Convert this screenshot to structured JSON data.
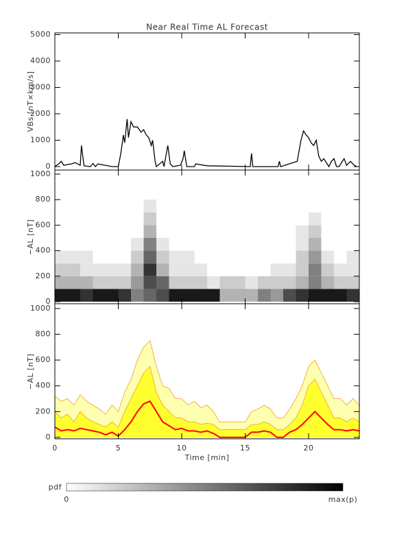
{
  "chart_data": [
    {
      "type": "line",
      "title": "Near Real Time AL Forecast",
      "ylabel": "VBs [nT×km/s]",
      "xlim": [
        0,
        24
      ],
      "ylim": [
        -130,
        5065
      ],
      "yticks": [
        0,
        1000,
        2000,
        3000,
        4000,
        5000
      ],
      "x": [
        0,
        0.3,
        0.5,
        0.7,
        1.0,
        1.3,
        1.6,
        2.0,
        2.1,
        2.3,
        2.8,
        3.0,
        3.2,
        3.4,
        4.5,
        5.0,
        5.2,
        5.4,
        5.5,
        5.7,
        5.8,
        6.0,
        6.2,
        6.5,
        6.8,
        7.0,
        7.2,
        7.4,
        7.6,
        7.7,
        7.9,
        8.0,
        8.5,
        8.6,
        8.9,
        9.1,
        9.3,
        9.9,
        10.1,
        10.2,
        10.4,
        11.0,
        11.1,
        12.0,
        15.4,
        15.5,
        15.6,
        17.6,
        17.7,
        17.8,
        19.1,
        19.4,
        19.6,
        19.8,
        20.0,
        20.2,
        20.4,
        20.6,
        20.8,
        21.0,
        21.2,
        21.6,
        21.8,
        22.0,
        22.2,
        22.4,
        22.8,
        23.0,
        23.3,
        23.6,
        23.8
      ],
      "series": [
        {
          "color": "#000000",
          "values": [
            0,
            100,
            200,
            50,
            80,
            100,
            150,
            50,
            800,
            30,
            0,
            120,
            0,
            100,
            0,
            0,
            500,
            1200,
            900,
            1800,
            1100,
            1700,
            1500,
            1500,
            1300,
            1400,
            1200,
            1100,
            800,
            1000,
            200,
            0,
            200,
            0,
            800,
            100,
            0,
            50,
            300,
            600,
            0,
            0,
            100,
            30,
            0,
            500,
            0,
            0,
            200,
            0,
            200,
            1000,
            1350,
            1200,
            1100,
            900,
            800,
            1000,
            400,
            200,
            300,
            0,
            200,
            300,
            0,
            0,
            300,
            50,
            200,
            50,
            0
          ]
        }
      ]
    },
    {
      "type": "heatmap",
      "ylabel": "−AL [nT]",
      "xlim": [
        0,
        24
      ],
      "ylim": [
        -16,
        1032
      ],
      "yticks": [
        0,
        200,
        400,
        600,
        800,
        1000
      ],
      "x_bins": [
        0,
        1,
        2,
        3,
        4,
        5,
        6,
        7,
        8,
        9,
        10,
        11,
        12,
        13,
        14,
        15,
        16,
        17,
        18,
        19,
        20,
        21,
        22,
        23,
        24
      ],
      "y_bins": [
        0,
        100,
        200,
        300,
        400,
        500,
        600,
        700,
        800
      ],
      "values": [
        [
          0.9,
          0.9,
          0.8,
          0.9,
          0.9,
          0.8,
          0.5,
          0.6,
          0.7,
          0.9,
          0.9,
          0.9,
          0.9,
          0.3,
          0.3,
          0.3,
          0.5,
          0.4,
          0.7,
          0.8,
          0.9,
          0.9,
          0.9,
          0.8
        ],
        [
          0.3,
          0.3,
          0.3,
          0.2,
          0.2,
          0.2,
          0.4,
          0.7,
          0.6,
          0.2,
          0.2,
          0.2,
          0.1,
          0.2,
          0.2,
          0.1,
          0.2,
          0.2,
          0.2,
          0.3,
          0.5,
          0.3,
          0.2,
          0.2
        ],
        [
          0.2,
          0.2,
          0.1,
          0.1,
          0.1,
          0.1,
          0.3,
          0.8,
          0.3,
          0.1,
          0.1,
          0.1,
          0,
          0,
          0,
          0,
          0,
          0.1,
          0.1,
          0.2,
          0.5,
          0.2,
          0.1,
          0.1
        ],
        [
          0.1,
          0.1,
          0.1,
          0,
          0,
          0,
          0.2,
          0.6,
          0.2,
          0.1,
          0.1,
          0,
          0,
          0,
          0,
          0,
          0,
          0,
          0,
          0.2,
          0.4,
          0.1,
          0,
          0.1
        ],
        [
          0,
          0,
          0,
          0,
          0,
          0,
          0.1,
          0.5,
          0.1,
          0,
          0,
          0,
          0,
          0,
          0,
          0,
          0,
          0,
          0,
          0.1,
          0.3,
          0,
          0,
          0
        ],
        [
          0,
          0,
          0,
          0,
          0,
          0,
          0,
          0.3,
          0,
          0,
          0,
          0,
          0,
          0,
          0,
          0,
          0,
          0,
          0,
          0.1,
          0.2,
          0,
          0,
          0
        ],
        [
          0,
          0,
          0,
          0,
          0,
          0,
          0,
          0.2,
          0,
          0,
          0,
          0,
          0,
          0,
          0,
          0,
          0,
          0,
          0,
          0,
          0.1,
          0,
          0,
          0
        ],
        [
          0,
          0,
          0,
          0,
          0,
          0,
          0,
          0.1,
          0,
          0,
          0,
          0,
          0,
          0,
          0,
          0,
          0,
          0,
          0,
          0,
          0,
          0,
          0,
          0
        ]
      ],
      "colorbar_label": "pdf",
      "colorbar_ticks": [
        "0",
        "max(p)"
      ]
    },
    {
      "type": "band",
      "ylabel": "−AL [nT]",
      "xlabel": "Time [min]",
      "xlim": [
        0,
        24
      ],
      "ylim": [
        -11,
        1037
      ],
      "xticks": [
        0,
        5,
        10,
        15,
        20
      ],
      "yticks": [
        0,
        200,
        400,
        600,
        800,
        1000
      ],
      "edge_color": "#f0a020",
      "x": [
        0,
        0.5,
        1,
        1.5,
        2,
        2.5,
        3,
        3.5,
        4,
        4.5,
        5,
        5.5,
        6,
        6.5,
        7,
        7.5,
        8,
        8.5,
        9,
        9.5,
        10,
        10.5,
        11,
        11.5,
        12,
        12.5,
        13,
        13.5,
        14,
        14.5,
        15,
        15.5,
        16,
        16.5,
        17,
        17.5,
        18,
        18.5,
        19,
        19.5,
        20,
        20.5,
        21,
        21.5,
        22,
        22.5,
        23,
        23.5,
        24
      ],
      "series": [
        {
          "color": "#ffffb0",
          "fill": true,
          "values": [
            320,
            280,
            300,
            250,
            330,
            280,
            250,
            220,
            180,
            250,
            200,
            350,
            450,
            600,
            700,
            750,
            550,
            400,
            380,
            300,
            300,
            250,
            280,
            230,
            250,
            200,
            120,
            120,
            120,
            120,
            120,
            200,
            220,
            250,
            220,
            150,
            150,
            220,
            300,
            400,
            550,
            600,
            500,
            400,
            300,
            300,
            250,
            300,
            250
          ]
        },
        {
          "color": "#ffff30",
          "fill": true,
          "values": [
            200,
            150,
            180,
            120,
            200,
            150,
            120,
            100,
            80,
            120,
            80,
            200,
            300,
            400,
            500,
            550,
            350,
            250,
            200,
            150,
            150,
            120,
            120,
            100,
            110,
            100,
            60,
            60,
            60,
            60,
            60,
            100,
            100,
            120,
            100,
            60,
            60,
            100,
            150,
            250,
            400,
            450,
            350,
            250,
            150,
            150,
            120,
            150,
            120
          ]
        },
        {
          "color": "#ff0000",
          "fill": false,
          "values": [
            80,
            50,
            60,
            50,
            70,
            60,
            50,
            40,
            20,
            40,
            10,
            60,
            120,
            200,
            260,
            280,
            200,
            120,
            90,
            60,
            70,
            50,
            50,
            40,
            50,
            30,
            0,
            0,
            0,
            0,
            0,
            40,
            40,
            50,
            40,
            0,
            0,
            40,
            60,
            100,
            150,
            200,
            150,
            100,
            60,
            60,
            50,
            60,
            50
          ]
        }
      ]
    }
  ]
}
